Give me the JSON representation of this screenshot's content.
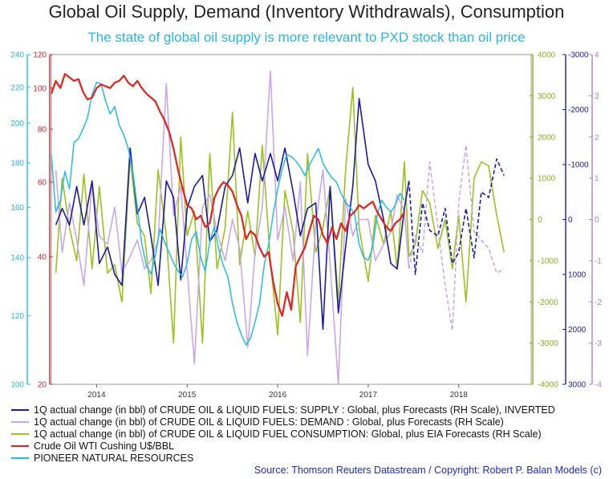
{
  "title": "Global Oil Supply, Demand (Inventory Withdrawals), Consumption",
  "subtitle": "The state of global oil supply is more relevant to PXD stock than oil price",
  "source": "Source: Thomson Reuters Datastream / Copyright: Robert P. Balan Models (c)",
  "colors": {
    "supply": "#1a1aa6",
    "demand": "#c9a6ee",
    "consumption": "#9ac21a",
    "wti": "#e8201c",
    "pxd": "#1fbde9",
    "axis_pxd": "#2ab4ea",
    "axis_wti": "#d4232a",
    "axis_green": "#88b21e",
    "axis_supply": "#1a1aa6",
    "axis_demand": "#b07ee3",
    "source": "#1f28c8"
  },
  "chart_data": {
    "type": "line",
    "title": "Global Oil Supply, Demand (Inventory Withdrawals), Consumption",
    "subtitle": "The state of global oil supply is more relevant to PXD stock than oil price",
    "x_ticks": [
      "2014",
      "2015",
      "2016",
      "2017",
      "2018"
    ],
    "x_range": [
      2013.5,
      2018.8
    ],
    "grid": false,
    "legend_position": "bottom",
    "axes": {
      "pxd": {
        "side": "left-outer",
        "range": [
          100,
          240
        ],
        "ticks": [
          "100",
          "120",
          "140",
          "160",
          "180",
          "200",
          "220",
          "240"
        ],
        "log_scale": true
      },
      "wti": {
        "side": "left-inner",
        "range": [
          20,
          120
        ],
        "ticks": [
          "20",
          "40",
          "60",
          "80",
          "100",
          "120"
        ],
        "log_scale": true
      },
      "consumption": {
        "side": "right-1",
        "range": [
          -4000,
          4000
        ],
        "ticks": [
          "-4000",
          "-3000",
          "-2000",
          "-1000",
          "0",
          "1000",
          "2000",
          "3000",
          "4000"
        ]
      },
      "supply_inverted": {
        "side": "right-2",
        "range": [
          3000,
          -3000
        ],
        "inverted": true,
        "ticks": [
          "3000",
          "2000",
          "1000",
          "0",
          "-1000",
          "-2000",
          "-3000"
        ]
      },
      "demand": {
        "side": "right-3",
        "range": [
          -4,
          4
        ],
        "ticks": [
          "-4",
          "-3",
          "-2",
          "-1",
          "0",
          "1",
          "2",
          "3",
          "4"
        ]
      }
    },
    "series": [
      {
        "name": "1Q actual change (in bbl) of CRUDE OIL & LIQUID FUELS: SUPPLY : Global, plus Forecasts (RH Scale), INVERTED",
        "axis": "supply_inverted",
        "forecast_from": 2017.45,
        "x": [
          2013.55,
          2013.62,
          2013.7,
          2013.78,
          2013.86,
          2013.95,
          2014.03,
          2014.12,
          2014.2,
          2014.28,
          2014.37,
          2014.45,
          2014.53,
          2014.6,
          2014.68,
          2014.77,
          2014.85,
          2014.93,
          2015.0,
          2015.08,
          2015.17,
          2015.25,
          2015.33,
          2015.42,
          2015.5,
          2015.58,
          2015.67,
          2015.75,
          2015.83,
          2015.92,
          2016.0,
          2016.08,
          2016.17,
          2016.25,
          2016.33,
          2016.42,
          2016.5,
          2016.58,
          2016.67,
          2016.75,
          2016.83,
          2016.9,
          2017.0,
          2017.08,
          2017.17,
          2017.25,
          2017.32,
          2017.4,
          2017.45,
          2017.52,
          2017.6,
          2017.68,
          2017.77,
          2017.85,
          2017.93,
          2018.0,
          2018.08,
          2018.17,
          2018.25,
          2018.33,
          2018.42,
          2018.5
        ],
        "y": [
          100,
          -200,
          100,
          -600,
          100,
          -700,
          800,
          500,
          1000,
          1200,
          -1300,
          -100,
          -400,
          300,
          1200,
          -700,
          -400,
          1100,
          -200,
          -600,
          -800,
          400,
          200,
          -600,
          -800,
          -1300,
          -300,
          -1200,
          -700,
          -1200,
          -700,
          -1300,
          -500,
          300,
          -200,
          -300,
          2000,
          -600,
          1700,
          500,
          -600,
          -2200,
          -1000,
          -700,
          0,
          800,
          900,
          -200,
          -700,
          1000,
          -300,
          200,
          300,
          -200,
          800,
          600,
          -200,
          700,
          -500,
          -400,
          -1100,
          -800
        ]
      },
      {
        "name": "1Q actual change (in bbl) of CRUDE OIL & LIQUID FUELS: DEMAND : Global, plus Forecasts (RH Scale)",
        "axis": "demand",
        "forecast_from": 2017.45,
        "x": [
          2013.55,
          2013.62,
          2013.7,
          2013.78,
          2013.86,
          2013.95,
          2014.03,
          2014.12,
          2014.2,
          2014.28,
          2014.37,
          2014.45,
          2014.53,
          2014.6,
          2014.68,
          2014.77,
          2014.85,
          2014.93,
          2015.0,
          2015.08,
          2015.17,
          2015.25,
          2015.33,
          2015.42,
          2015.5,
          2015.58,
          2015.67,
          2015.75,
          2015.83,
          2015.92,
          2016.0,
          2016.08,
          2016.17,
          2016.25,
          2016.33,
          2016.42,
          2016.5,
          2016.58,
          2016.67,
          2016.75,
          2016.83,
          2016.9,
          2017.0,
          2017.08,
          2017.17,
          2017.25,
          2017.32,
          2017.4,
          2017.45,
          2017.52,
          2017.6,
          2017.68,
          2017.77,
          2017.85,
          2017.93,
          2018.0,
          2018.08,
          2018.17,
          2018.25,
          2018.33,
          2018.42,
          2018.5
        ],
        "y": [
          1.2,
          -0.8,
          0.4,
          -0.5,
          -1.6,
          0.9,
          -0.4,
          -0.6,
          0.3,
          -1.3,
          -0.9,
          -0.5,
          -1.2,
          -1.0,
          -0.5,
          3.3,
          0.1,
          0.8,
          -1.2,
          -3.5,
          0.3,
          0.6,
          -0.3,
          -1.0,
          0.0,
          -0.7,
          -3.1,
          -0.8,
          0.3,
          3.6,
          -0.5,
          0.3,
          -1.0,
          0.9,
          -3.3,
          -0.1,
          1.2,
          -1.1,
          -4.0,
          0.5,
          -0.4,
          0.0,
          0.0,
          -1.0,
          -0.6,
          -0.3,
          0.6,
          0.2,
          -1.2,
          -0.4,
          -0.8,
          1.4,
          -0.2,
          -1.6,
          -2.7,
          0.4,
          1.8,
          -0.3,
          -0.5,
          -0.7,
          -1.3,
          -1.2
        ]
      },
      {
        "name": "1Q actual change (in bbl) of CRUDE OIL & LIQUID FUEL CONSUMPTION: Global, plus EIA Forecasts (RH Scale)",
        "axis": "consumption",
        "x": [
          2013.55,
          2013.62,
          2013.7,
          2013.78,
          2013.86,
          2013.95,
          2014.03,
          2014.12,
          2014.2,
          2014.28,
          2014.37,
          2014.45,
          2014.53,
          2014.6,
          2014.68,
          2014.77,
          2014.85,
          2014.93,
          2015.0,
          2015.08,
          2015.17,
          2015.25,
          2015.33,
          2015.42,
          2015.5,
          2015.58,
          2015.67,
          2015.75,
          2015.83,
          2015.92,
          2016.0,
          2016.08,
          2016.17,
          2016.25,
          2016.33,
          2016.42,
          2016.5,
          2016.58,
          2016.67,
          2016.75,
          2016.83,
          2016.9,
          2017.0,
          2017.08,
          2017.17,
          2017.25,
          2017.32,
          2017.4,
          2017.45,
          2017.52,
          2017.6,
          2017.68,
          2017.77,
          2017.85,
          2017.93,
          2018.0,
          2018.08,
          2018.17,
          2018.25,
          2018.33,
          2018.42,
          2018.5
        ],
        "y": [
          -1300,
          1000,
          -200,
          -1000,
          1100,
          -1200,
          800,
          -1300,
          -1100,
          -2000,
          1500,
          -100,
          -400,
          -1800,
          1200,
          -400,
          -3000,
          2000,
          -400,
          200,
          -3000,
          1600,
          -1200,
          -200,
          2600,
          -1100,
          200,
          -900,
          1800,
          -1000,
          -2800,
          700,
          -300,
          -2500,
          1600,
          -800,
          -200,
          800,
          -2000,
          1200,
          3200,
          -200,
          -1500,
          100,
          -600,
          200,
          -1200,
          1400,
          -900,
          -600,
          700,
          400,
          -700,
          0,
          -1200,
          100,
          -2000,
          1000,
          1400,
          1300,
          100,
          -800
        ]
      },
      {
        "name": "Crude Oil WTI Cushing U$/BBL",
        "axis": "wti",
        "x": [
          2013.5,
          2013.55,
          2013.6,
          2013.65,
          2013.7,
          2013.75,
          2013.8,
          2013.85,
          2013.9,
          2013.95,
          2014.0,
          2014.05,
          2014.1,
          2014.15,
          2014.2,
          2014.25,
          2014.3,
          2014.35,
          2014.4,
          2014.45,
          2014.5,
          2014.55,
          2014.6,
          2014.65,
          2014.7,
          2014.75,
          2014.8,
          2014.85,
          2014.9,
          2014.95,
          2015.0,
          2015.05,
          2015.1,
          2015.15,
          2015.2,
          2015.25,
          2015.3,
          2015.35,
          2015.4,
          2015.45,
          2015.5,
          2015.55,
          2015.6,
          2015.65,
          2015.7,
          2015.75,
          2015.8,
          2015.85,
          2015.9,
          2015.95,
          2016.0,
          2016.05,
          2016.1,
          2016.15,
          2016.2,
          2016.25,
          2016.3,
          2016.35,
          2016.4,
          2016.45,
          2016.5,
          2016.55,
          2016.6,
          2016.65,
          2016.7,
          2016.75,
          2016.8,
          2016.85,
          2016.9,
          2016.95,
          2017.0,
          2017.05,
          2017.1,
          2017.15,
          2017.2,
          2017.25,
          2017.3,
          2017.35,
          2017.4
        ],
        "y": [
          97,
          104,
          100,
          108,
          106,
          104,
          105,
          98,
          94,
          95,
          100,
          102,
          101,
          100,
          103,
          104,
          107,
          103,
          101,
          104,
          100,
          97,
          95,
          93,
          88,
          84,
          79,
          72,
          64,
          58,
          53,
          52,
          49,
          50,
          47,
          48,
          55,
          58,
          60,
          59,
          57,
          53,
          50,
          44,
          46,
          45,
          42,
          40,
          41,
          35,
          31,
          29,
          33,
          30,
          38,
          40,
          42,
          46,
          50,
          49,
          45,
          43,
          47,
          44,
          48,
          46,
          50,
          51,
          53,
          52,
          53,
          54,
          51,
          49,
          47,
          46,
          48,
          49,
          51
        ]
      },
      {
        "name": "PIONEER NATURAL RESOURCES",
        "axis": "pxd",
        "x": [
          2013.5,
          2013.55,
          2013.6,
          2013.65,
          2013.7,
          2013.75,
          2013.8,
          2013.85,
          2013.9,
          2013.95,
          2014.0,
          2014.05,
          2014.1,
          2014.15,
          2014.2,
          2014.25,
          2014.3,
          2014.35,
          2014.4,
          2014.45,
          2014.5,
          2014.55,
          2014.6,
          2014.65,
          2014.7,
          2014.75,
          2014.8,
          2014.85,
          2014.9,
          2014.95,
          2015.0,
          2015.05,
          2015.1,
          2015.15,
          2015.2,
          2015.25,
          2015.3,
          2015.35,
          2015.4,
          2015.45,
          2015.5,
          2015.55,
          2015.6,
          2015.65,
          2015.7,
          2015.75,
          2015.8,
          2015.85,
          2015.9,
          2015.95,
          2016.0,
          2016.05,
          2016.1,
          2016.15,
          2016.2,
          2016.25,
          2016.3,
          2016.35,
          2016.4,
          2016.45,
          2016.5,
          2016.55,
          2016.6,
          2016.65,
          2016.7,
          2016.75,
          2016.8,
          2016.85,
          2016.9,
          2016.95,
          2017.0,
          2017.05,
          2017.1,
          2017.15,
          2017.2,
          2017.25,
          2017.3,
          2017.35,
          2017.4
        ],
        "y": [
          184,
          158,
          163,
          176,
          168,
          190,
          192,
          197,
          203,
          216,
          223,
          222,
          212,
          205,
          209,
          199,
          194,
          187,
          176,
          160,
          145,
          137,
          134,
          141,
          151,
          146,
          142,
          138,
          135,
          133,
          138,
          147,
          150,
          140,
          135,
          146,
          152,
          143,
          137,
          133,
          124,
          118,
          114,
          111,
          113,
          118,
          124,
          137,
          145,
          157,
          168,
          177,
          184,
          183,
          181,
          178,
          174,
          179,
          183,
          187,
          180,
          176,
          173,
          171,
          166,
          162,
          160,
          157,
          145,
          140,
          139,
          144,
          157,
          163,
          160,
          158,
          161,
          166,
          163
        ]
      }
    ]
  }
}
